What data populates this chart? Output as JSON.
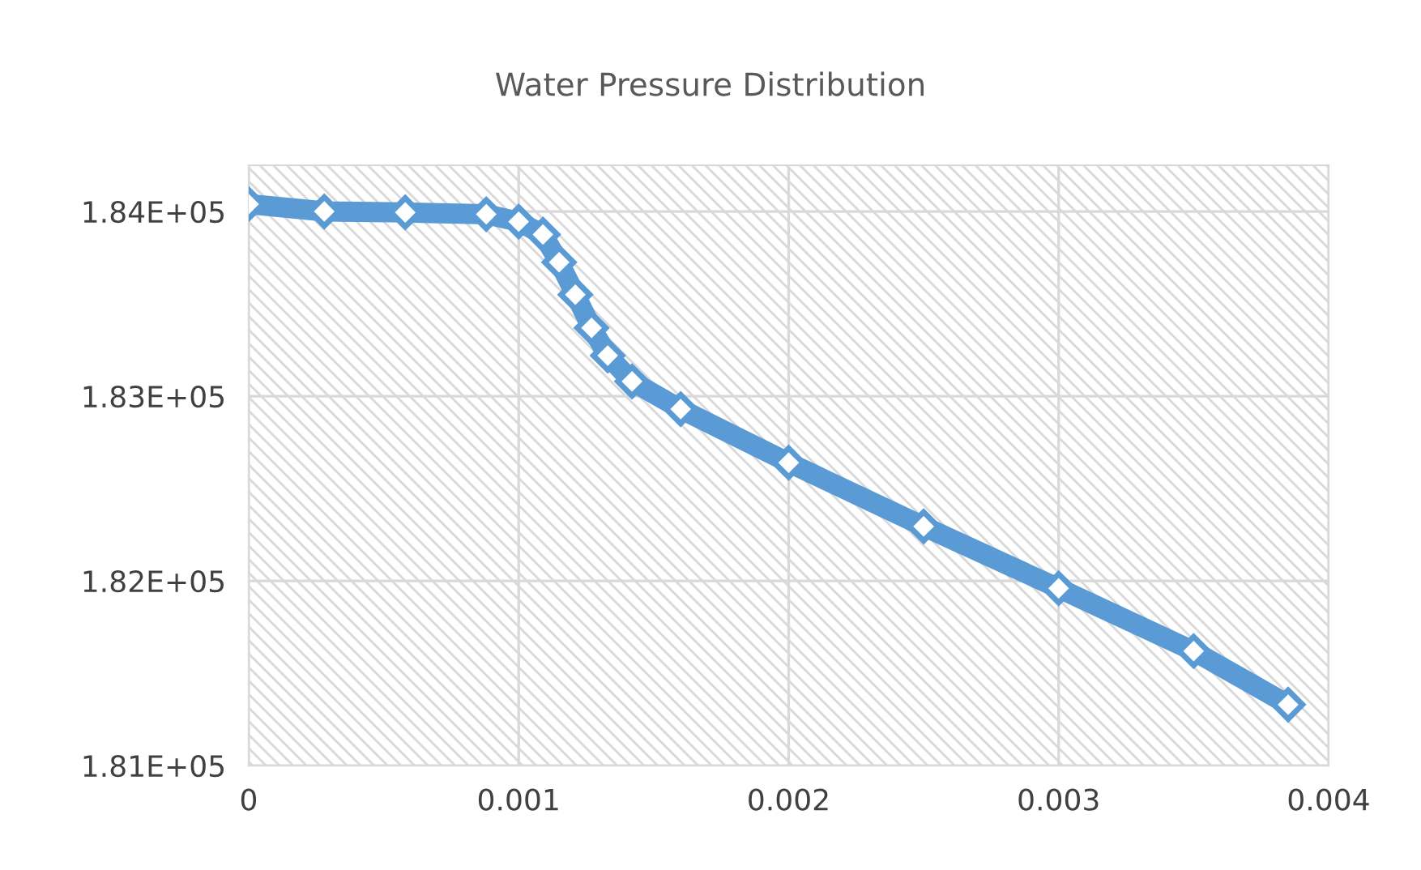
{
  "chart_data": {
    "type": "line",
    "title": "Water Pressure Distribution",
    "x": [
      0,
      0.00028,
      0.00058,
      0.00088,
      0.001,
      0.00109,
      0.00115,
      0.00121,
      0.00127,
      0.00133,
      0.00142,
      0.0016,
      0.002,
      0.0025,
      0.003,
      0.0035,
      0.00385
    ],
    "series": [
      {
        "color": "#5b9bd5",
        "values": [
          184040,
          184000,
          183995,
          183985,
          183945,
          183875,
          183725,
          183550,
          183370,
          183220,
          183080,
          182930,
          182640,
          182295,
          181960,
          181620,
          181330
        ]
      }
    ],
    "xlim": [
      0,
      0.004
    ],
    "xticks": [
      0,
      0.001,
      0.002,
      0.003,
      0.004
    ],
    "ylim": [
      181000,
      184250
    ],
    "yticks": [
      {
        "value": 181000,
        "label": "1.81E+05"
      },
      {
        "value": 182000,
        "label": "1.82E+05"
      },
      {
        "value": 183000,
        "label": "1.83E+05"
      },
      {
        "value": 184000,
        "label": "1.84E+05"
      }
    ],
    "grid": true,
    "marker": "diamond",
    "legend": false
  }
}
